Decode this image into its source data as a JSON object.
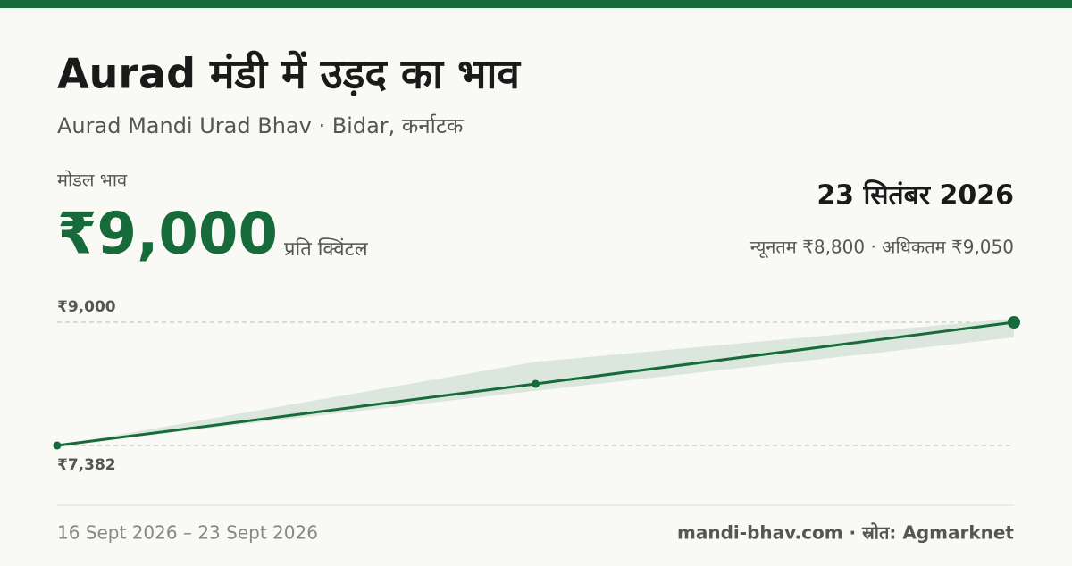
{
  "header": {
    "title": "Aurad मंडी में उड़द का भाव",
    "subtitle": "Aurad Mandi Urad Bhav · Bidar, कर्नाटक",
    "price_label": "मोडल भाव",
    "price": "₹9,000",
    "unit": "प्रति क्विंटल",
    "date": "23 सितंबर 2026",
    "range": "न्यूनतम ₹8,800 · अधिकतम ₹9,050"
  },
  "chart_data": {
    "type": "line",
    "series": [
      {
        "color": "#176b3a",
        "values": [
          7382,
          8191,
          9000
        ]
      }
    ],
    "band": {
      "color": "#dbe7dd",
      "lower": [
        7382,
        8100,
        8800
      ],
      "upper": [
        7382,
        8480,
        9050
      ]
    },
    "ylim": [
      7382,
      9000
    ],
    "yticks": [
      {
        "value": 9000,
        "label": "₹9,000"
      },
      {
        "value": 7382,
        "label": "₹7,382"
      }
    ],
    "x_range": "16 Sept 2026 – 23 Sept 2026"
  },
  "footer": {
    "source": "mandi-bhav.com · स्रोत: Agmarknet"
  }
}
